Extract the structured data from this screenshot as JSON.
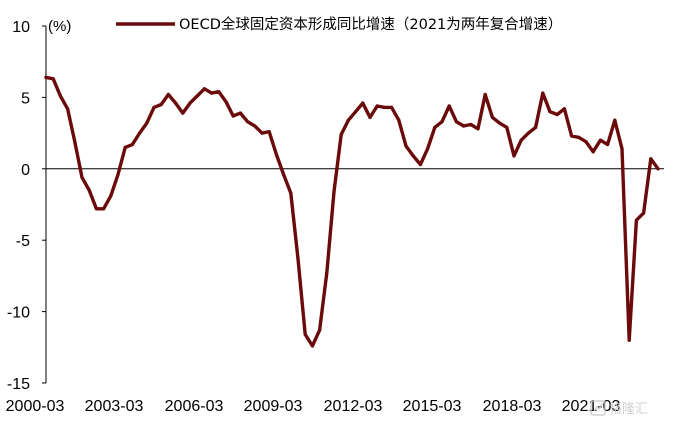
{
  "chart_data": {
    "type": "line",
    "title": "",
    "y_unit_label": "(%)",
    "xlabel": "",
    "ylabel": "",
    "ylim": [
      -15,
      10
    ],
    "yticks": [
      10,
      5,
      0,
      -5,
      -10,
      -15
    ],
    "x_tick_labels": [
      "2000-03",
      "2003-03",
      "2006-03",
      "2009-03",
      "2012-03",
      "2015-03",
      "2018-03",
      "2021-03"
    ],
    "grid": false,
    "legend_position": "top",
    "series": [
      {
        "name": "OECD全球固定资本形成同比增速（2021为两年复合增速）",
        "color": "#6b0a0a",
        "x": [
          "2000-03",
          "2000-06",
          "2000-09",
          "2000-12",
          "2001-03",
          "2001-06",
          "2001-09",
          "2001-12",
          "2002-03",
          "2002-06",
          "2002-09",
          "2002-12",
          "2003-03",
          "2003-06",
          "2003-09",
          "2003-12",
          "2004-03",
          "2004-06",
          "2004-09",
          "2004-12",
          "2005-03",
          "2005-06",
          "2005-09",
          "2005-12",
          "2006-03",
          "2006-06",
          "2006-09",
          "2006-12",
          "2007-03",
          "2007-06",
          "2007-09",
          "2007-12",
          "2008-03",
          "2008-06",
          "2008-09",
          "2008-12",
          "2009-03",
          "2009-06",
          "2009-09",
          "2009-12",
          "2010-03",
          "2010-06",
          "2010-09",
          "2010-12",
          "2011-03",
          "2011-06",
          "2011-09",
          "2011-12",
          "2012-03",
          "2012-06",
          "2012-09",
          "2012-12",
          "2013-03",
          "2013-06",
          "2013-09",
          "2013-12",
          "2014-03",
          "2014-06",
          "2014-09",
          "2014-12",
          "2015-03",
          "2015-06",
          "2015-09",
          "2015-12",
          "2016-03",
          "2016-06",
          "2016-09",
          "2016-12",
          "2017-03",
          "2017-06",
          "2017-09",
          "2017-12",
          "2018-03",
          "2018-06",
          "2018-09",
          "2018-12",
          "2019-03",
          "2019-06",
          "2019-09",
          "2019-12",
          "2020-03",
          "2020-06",
          "2020-09",
          "2020-12",
          "2021-03",
          "2021-06"
        ],
        "values": [
          6.4,
          6.3,
          5.1,
          4.2,
          1.9,
          -0.6,
          -1.5,
          -2.8,
          -2.8,
          -1.9,
          -0.4,
          1.5,
          1.7,
          2.5,
          3.2,
          4.3,
          4.5,
          5.2,
          4.6,
          3.9,
          4.6,
          5.1,
          5.6,
          5.3,
          5.4,
          4.7,
          3.7,
          3.9,
          3.3,
          3.0,
          2.5,
          2.6,
          1.0,
          -0.4,
          -1.7,
          -6.3,
          -11.6,
          -12.4,
          -11.3,
          -7.3,
          -1.6,
          2.4,
          3.4,
          4.0,
          4.6,
          3.6,
          4.4,
          4.3,
          4.3,
          3.4,
          1.6,
          0.9,
          0.3,
          1.4,
          2.9,
          3.3,
          4.4,
          3.3,
          3.0,
          3.1,
          2.8,
          5.2,
          3.6,
          3.2,
          2.9,
          0.9,
          2.0,
          2.5,
          2.9,
          5.3,
          4.0,
          3.8,
          4.2,
          2.3,
          2.2,
          1.9,
          1.2,
          2.0,
          1.7,
          3.4,
          1.4,
          -12.0,
          -3.6,
          -3.1,
          0.7,
          0.0
        ]
      }
    ]
  },
  "watermark": {
    "icon": "watermark-logo-icon",
    "text": "格隆汇"
  }
}
